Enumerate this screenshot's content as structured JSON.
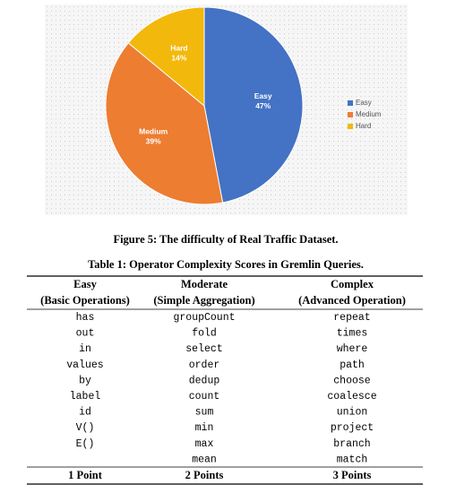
{
  "chart_data": {
    "type": "pie",
    "categories": [
      "Easy",
      "Medium",
      "Hard"
    ],
    "values": [
      47,
      39,
      14
    ],
    "value_labels": [
      "47%",
      "39%",
      "14%"
    ],
    "colors": [
      "#4472c4",
      "#ed7d31",
      "#f2b80c"
    ],
    "legend": "right"
  },
  "figure_caption": "Figure 5: The difficulty of Real Traffic Dataset.",
  "table": {
    "caption": "Table 1: Operator Complexity Scores in Gremlin Queries.",
    "header": [
      [
        "Easy",
        "Moderate",
        "Complex"
      ],
      [
        "(Basic Operations)",
        "(Simple Aggregation)",
        "(Advanced Operation)"
      ]
    ],
    "rows": [
      [
        "has",
        "groupCount",
        "repeat"
      ],
      [
        "out",
        "fold",
        "times"
      ],
      [
        "in",
        "select",
        "where"
      ],
      [
        "values",
        "order",
        "path"
      ],
      [
        "by",
        "dedup",
        "choose"
      ],
      [
        "label",
        "count",
        "coalesce"
      ],
      [
        "id",
        "sum",
        "union"
      ],
      [
        "V()",
        "min",
        "project"
      ],
      [
        "E()",
        "max",
        "branch"
      ],
      [
        null,
        "mean",
        "match"
      ]
    ],
    "footer": [
      "1 Point",
      "2 Points",
      "3 Points"
    ]
  }
}
